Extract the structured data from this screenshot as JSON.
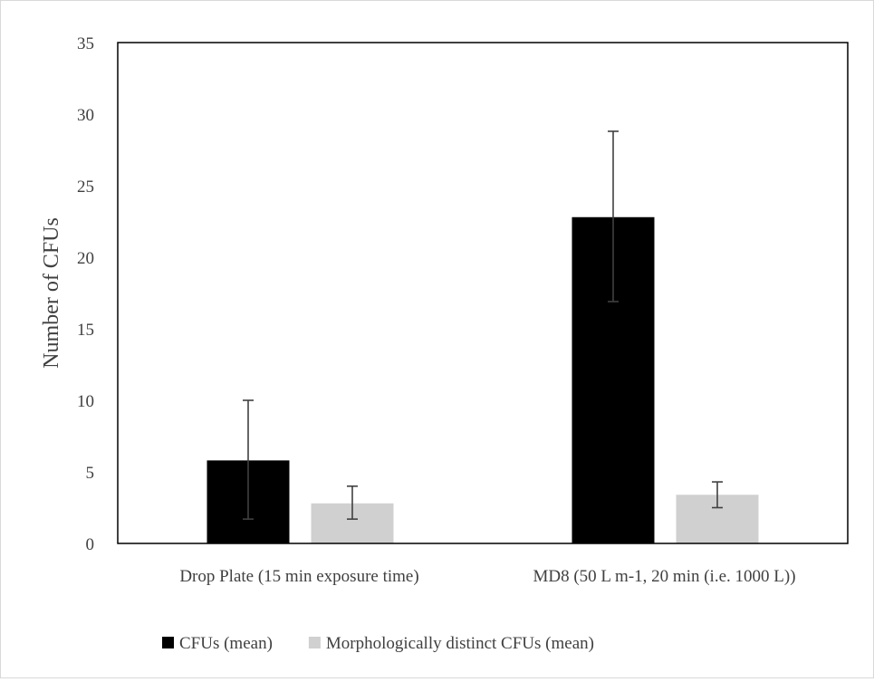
{
  "chart_data": {
    "type": "bar",
    "title": "",
    "xlabel": "",
    "ylabel": "Number of CFUs",
    "ylim": [
      0,
      35
    ],
    "yticks": [
      0,
      5,
      10,
      15,
      20,
      25,
      30,
      35
    ],
    "grid": false,
    "legend_position": "bottom",
    "categories": [
      "Drop Plate (15 min exposure time)",
      "MD8 (50 L m-1, 20 min (i.e. 1000 L))"
    ],
    "series": [
      {
        "name": "CFUs (mean)",
        "color": "#000000",
        "values": [
          5.8,
          22.8
        ],
        "error_low": [
          1.7,
          16.9
        ],
        "error_high": [
          10.0,
          28.8
        ]
      },
      {
        "name": "Morphologically distinct CFUs (mean)",
        "color": "#d0d0d0",
        "values": [
          2.8,
          3.4
        ],
        "error_low": [
          1.7,
          2.5
        ],
        "error_high": [
          4.0,
          4.3
        ]
      }
    ],
    "error_bar_color": "#404040"
  }
}
